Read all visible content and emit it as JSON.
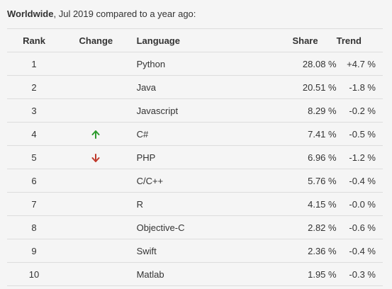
{
  "header": {
    "title": "Worldwide",
    "subtitle": ", Jul 2019 compared to a year ago:"
  },
  "table": {
    "columns": [
      "Rank",
      "Change",
      "Language",
      "Share",
      "Trend"
    ],
    "rows": [
      {
        "rank": "1",
        "change": null,
        "language": "Python",
        "share": "28.08 %",
        "trend": "+4.7 %"
      },
      {
        "rank": "2",
        "change": null,
        "language": "Java",
        "share": "20.51 %",
        "trend": "-1.8 %"
      },
      {
        "rank": "3",
        "change": null,
        "language": "Javascript",
        "share": "8.29 %",
        "trend": "-0.2 %"
      },
      {
        "rank": "4",
        "change": "up",
        "language": "C#",
        "share": "7.41 %",
        "trend": "-0.5 %"
      },
      {
        "rank": "5",
        "change": "down",
        "language": "PHP",
        "share": "6.96 %",
        "trend": "-1.2 %"
      },
      {
        "rank": "6",
        "change": null,
        "language": "C/C++",
        "share": "5.76 %",
        "trend": "-0.4 %"
      },
      {
        "rank": "7",
        "change": null,
        "language": "R",
        "share": "4.15 %",
        "trend": "-0.0 %"
      },
      {
        "rank": "8",
        "change": null,
        "language": "Objective-C",
        "share": "2.82 %",
        "trend": "-0.6 %"
      },
      {
        "rank": "9",
        "change": null,
        "language": "Swift",
        "share": "2.36 %",
        "trend": "-0.4 %"
      },
      {
        "rank": "10",
        "change": null,
        "language": "Matlab",
        "share": "1.95 %",
        "trend": "-0.3 %"
      }
    ]
  }
}
